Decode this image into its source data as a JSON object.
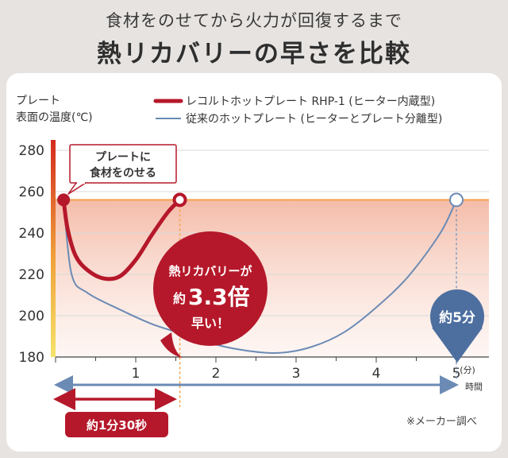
{
  "header": {
    "subtitle": "食材をのせてから火力が回復するまで",
    "title": "熱リカバリーの早さを比較"
  },
  "y_axis_label_line1": "プレート",
  "y_axis_label_line2": "表面の温度(℃)",
  "x_axis_unit_line1": "(分)",
  "x_axis_unit_line2": "時間",
  "legend": {
    "recolte": "レコルトホットプレート RHP-1 (ヒーター内蔵型)",
    "conventional": "従来のホットプレート (ヒーターとプレート分離型)"
  },
  "callouts": {
    "place_food_line1": "プレートに",
    "place_food_line2": "食材をのせる",
    "speed_line1": "熱リカバリーが",
    "speed_prefix": "約",
    "speed_value": "3.3倍",
    "speed_line3": "早い！",
    "conventional_time": "約5分",
    "recolte_time": "約1分30秒"
  },
  "footnote": "※メーカー調べ",
  "colors": {
    "recolte": "#b5182a",
    "conventional": "#6b8bb5",
    "band_top": "#f4b8a4",
    "threshold": "#f2a24a",
    "axis_bar_top": "#d42a1e",
    "axis_bar_bottom": "#f5e36a"
  },
  "chart_data": {
    "type": "line",
    "xlabel": "時間 (分)",
    "ylabel": "プレート 表面の温度(℃)",
    "xlim": [
      0,
      5.2
    ],
    "ylim": [
      180,
      285
    ],
    "x_ticks": [
      1,
      2,
      3,
      4,
      5
    ],
    "x_tick_labels": [
      "1",
      "2",
      "3",
      "4",
      "5"
    ],
    "y_ticks": [
      180,
      200,
      220,
      240,
      260,
      280
    ],
    "y_tick_labels": [
      "180",
      "200",
      "220",
      "240",
      "260",
      "280"
    ],
    "threshold": 256,
    "grid": true,
    "legend_position": "top",
    "series": [
      {
        "name": "レコルトホットプレート RHP-1 (ヒーター内蔵型)",
        "x": [
          0.1,
          0.15,
          0.25,
          0.4,
          0.6,
          0.8,
          1.0,
          1.2,
          1.4,
          1.55
        ],
        "y": [
          256,
          242,
          229,
          222,
          218,
          219,
          227,
          239,
          250,
          256
        ]
      },
      {
        "name": "従来のホットプレート (ヒーターとプレート分離型)",
        "x": [
          0.1,
          0.2,
          0.4,
          0.8,
          1.2,
          1.6,
          2.0,
          2.4,
          2.8,
          3.2,
          3.6,
          4.0,
          4.4,
          4.8,
          5.0
        ],
        "y": [
          256,
          220,
          211,
          203,
          196,
          191,
          186,
          183,
          182,
          185,
          192,
          204,
          219,
          240,
          256
        ]
      }
    ]
  }
}
